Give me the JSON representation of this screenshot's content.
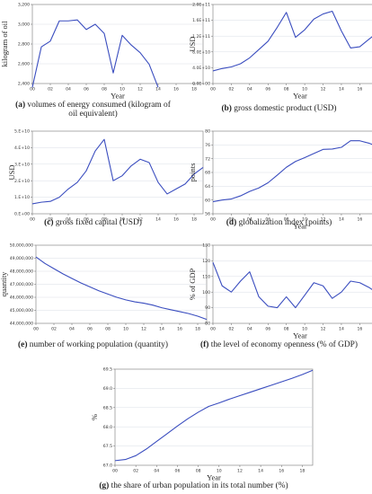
{
  "chart_data": [
    {
      "id": "a",
      "type": "line",
      "caption_letter": "(a)",
      "caption": "volumes of energy consumed (kilogram of oil equivalent)",
      "xlabel": "Year",
      "ylabel": "kilogram of oil",
      "x_ticks": [
        "00",
        "02",
        "04",
        "06",
        "08",
        "10",
        "12",
        "14",
        "16",
        "18"
      ],
      "y_ticks": [
        "2,400",
        "2,600",
        "2,800",
        "3,000",
        "3,200"
      ],
      "ylim": [
        2380,
        3200
      ],
      "x": [
        0,
        1,
        2,
        3,
        4,
        5,
        6,
        7,
        8,
        9,
        10,
        11,
        12,
        13,
        14
      ],
      "values": [
        2340,
        2760,
        2820,
        3030,
        3030,
        3040,
        2940,
        2995,
        2900,
        2490,
        2880,
        2780,
        2700,
        2580,
        2340
      ],
      "line_color": "#3a4dbf",
      "grid": true
    },
    {
      "id": "b",
      "type": "line",
      "caption_letter": "(b)",
      "caption": "gross domestic product (USD)",
      "xlabel": "Year",
      "ylabel": "USD",
      "x_ticks": [
        "00",
        "02",
        "04",
        "06",
        "08",
        "10",
        "12",
        "14",
        "16",
        "18"
      ],
      "y_ticks": [
        "0.0E+00",
        "4.0E+10",
        "8.0E+10",
        "1.2E+11",
        "1.6E+11",
        "2.0E+11"
      ],
      "ylim": [
        0,
        200000000000.0
      ],
      "x": [
        0,
        1,
        2,
        3,
        4,
        5,
        6,
        7,
        8,
        9,
        10,
        11,
        12,
        13,
        14,
        15,
        16,
        17,
        18,
        19
      ],
      "values": [
        32000000000.0,
        38000000000.0,
        42000000000.0,
        50000000000.0,
        65000000000.0,
        86000000000.0,
        107000000000.0,
        142000000000.0,
        180000000000.0,
        117000000000.0,
        136000000000.0,
        163000000000.0,
        176000000000.0,
        183000000000.0,
        133000000000.0,
        90000000000.0,
        93000000000.0,
        112000000000.0,
        130000000000.0,
        152000000000.0
      ],
      "line_color": "#3a4dbf",
      "grid": true
    },
    {
      "id": "c",
      "type": "line",
      "caption_letter": "(c)",
      "caption": "gross fixed capital (USD)",
      "xlabel": "",
      "ylabel": "USD",
      "x_ticks": [
        "00",
        "02",
        "04",
        "06",
        "08",
        "10",
        "12",
        "14",
        "16",
        "18"
      ],
      "y_ticks": [
        "0.E+00",
        "1.E+10",
        "2.E+10",
        "3.E+10",
        "4.E+10",
        "5.E+10"
      ],
      "ylim": [
        0,
        50000000000.0
      ],
      "x": [
        0,
        1,
        2,
        3,
        4,
        5,
        6,
        7,
        8,
        9,
        10,
        11,
        12,
        13,
        14,
        15,
        16,
        17,
        18,
        19
      ],
      "values": [
        6000000000.0,
        7000000000.0,
        7500000000.0,
        10000000000.0,
        15000000000.0,
        19000000000.0,
        26000000000.0,
        38000000000.0,
        45000000000.0,
        20000000000.0,
        23000000000.0,
        29000000000.0,
        33000000000.0,
        31000000000.0,
        19000000000.0,
        12000000000.0,
        15000000000.0,
        18000000000.0,
        24000000000.0,
        28000000000.0
      ],
      "line_color": "#3a4dbf",
      "grid": true
    },
    {
      "id": "d",
      "type": "line",
      "caption_letter": "(d)",
      "caption": "globalization index (points)",
      "xlabel": "Year",
      "ylabel": "points",
      "x_ticks": [
        "00",
        "02",
        "04",
        "06",
        "08",
        "10",
        "12",
        "14",
        "16",
        "18"
      ],
      "y_ticks": [
        "56",
        "60",
        "64",
        "68",
        "72",
        "76",
        "80"
      ],
      "ylim": [
        56,
        80
      ],
      "x": [
        0,
        1,
        2,
        3,
        4,
        5,
        6,
        7,
        8,
        9,
        10,
        11,
        12,
        13,
        14,
        15,
        16,
        17,
        18,
        19
      ],
      "values": [
        59.5,
        60.0,
        60.3,
        61.2,
        62.5,
        63.5,
        65.0,
        67.2,
        69.5,
        71.2,
        72.3,
        73.5,
        74.7,
        74.8,
        75.3,
        77.2,
        77.2,
        76.5,
        75.5,
        75.0
      ],
      "line_color": "#3a4dbf",
      "grid": true
    },
    {
      "id": "e",
      "type": "line",
      "caption_letter": "(e)",
      "caption": "number of working population (quantity)",
      "xlabel": "",
      "ylabel": "quantity",
      "x_ticks": [
        "00",
        "02",
        "04",
        "06",
        "08",
        "10",
        "12",
        "14",
        "16",
        "18"
      ],
      "y_ticks": [
        "44,000,000",
        "45,000,000",
        "46,000,000",
        "47,000,000",
        "48,000,000",
        "49,000,000",
        "50,000,000"
      ],
      "ylim": [
        44000000,
        50000000
      ],
      "x": [
        0,
        1,
        2,
        3,
        4,
        5,
        6,
        7,
        8,
        9,
        10,
        11,
        12,
        13,
        14,
        15,
        16,
        17,
        18,
        19
      ],
      "values": [
        49100000,
        48600000,
        48200000,
        47800000,
        47450000,
        47100000,
        46800000,
        46500000,
        46250000,
        46000000,
        45800000,
        45650000,
        45550000,
        45400000,
        45200000,
        45050000,
        44900000,
        44750000,
        44550000,
        44300000
      ],
      "line_color": "#3a4dbf",
      "grid": true
    },
    {
      "id": "f",
      "type": "line",
      "caption_letter": "(f)",
      "caption": "the level of economy openness (% of GDP)",
      "xlabel": "Year",
      "ylabel": "% of GDP",
      "x_ticks": [
        "00",
        "02",
        "04",
        "06",
        "08",
        "10",
        "12",
        "14",
        "16",
        "18"
      ],
      "y_ticks": [
        "80",
        "90",
        "100",
        "110",
        "120",
        "130"
      ],
      "ylim": [
        80,
        130
      ],
      "x": [
        0,
        1,
        2,
        3,
        4,
        5,
        6,
        7,
        8,
        9,
        10,
        11,
        12,
        13,
        14,
        15,
        16,
        17,
        18,
        19
      ],
      "values": [
        119,
        104,
        100,
        107,
        113,
        97,
        91,
        90,
        97,
        90,
        98,
        106,
        104,
        96,
        100,
        107,
        106,
        103,
        99,
        90
      ],
      "line_color": "#3a4dbf",
      "grid": true
    },
    {
      "id": "g",
      "type": "line",
      "caption_letter": "(g)",
      "caption": "the share of urban population in its total number (%)",
      "xlabel": "Year",
      "ylabel": "%",
      "x_ticks": [
        "00",
        "02",
        "04",
        "06",
        "08",
        "10",
        "12",
        "14",
        "16",
        "18"
      ],
      "y_ticks": [
        "67.0",
        "67.5",
        "68.0",
        "68.5",
        "69.0",
        "69.5"
      ],
      "ylim": [
        67.0,
        69.5
      ],
      "x": [
        0,
        1,
        2,
        3,
        4,
        5,
        6,
        7,
        8,
        9,
        10,
        11,
        12,
        13,
        14,
        15,
        16,
        17,
        18,
        19
      ],
      "values": [
        67.12,
        67.15,
        67.25,
        67.42,
        67.62,
        67.82,
        68.02,
        68.21,
        68.38,
        68.53,
        68.62,
        68.72,
        68.81,
        68.9,
        68.99,
        69.08,
        69.17,
        69.26,
        69.36,
        69.47
      ],
      "line_color": "#3a4dbf",
      "grid": true
    }
  ]
}
